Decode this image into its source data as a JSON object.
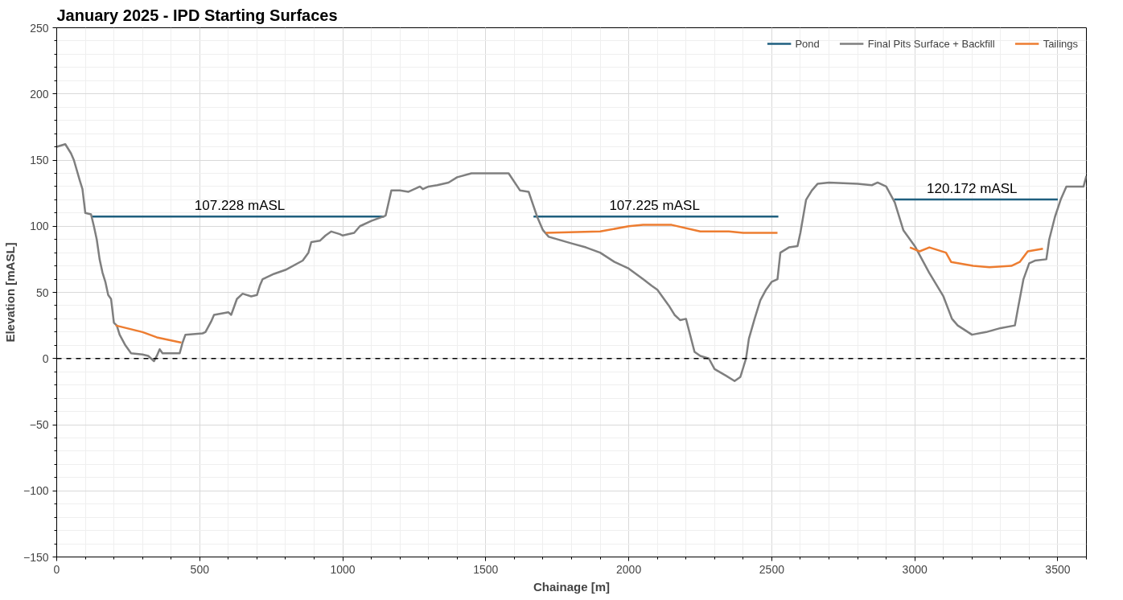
{
  "chart_data": {
    "type": "line",
    "title": "January 2025 - IPD Starting Surfaces",
    "xlabel": "Chainage [m]",
    "ylabel": "Elevation [mASL]",
    "xlim": [
      0,
      3600
    ],
    "xticks": [
      0,
      500,
      1000,
      1500,
      2000,
      2500,
      3000,
      3500
    ],
    "ylim": [
      -150,
      250
    ],
    "yticks": [
      -150,
      -100,
      -50,
      0,
      50,
      100,
      150,
      200,
      250
    ],
    "grid": true,
    "legend": "top right",
    "line_style": "solid",
    "marker": "none",
    "series": [
      {
        "name": "Pond",
        "color": "#1f5f7f",
        "x": [
          123,
          1145,
          1146,
          1667,
          2523,
          2524,
          2928,
          3500
        ],
        "values": [
          107.228,
          107.228,
          null,
          107.225,
          107.225,
          null,
          120.172,
          120.172
        ]
      },
      {
        "name": "Final Pits Surface + Backfill",
        "color": "#7f7f7f",
        "x": [
          0,
          30,
          50,
          60,
          80,
          90,
          100,
          120,
          130,
          140,
          150,
          160,
          170,
          180,
          190,
          200,
          210,
          220,
          240,
          260,
          300,
          320,
          340,
          350,
          360,
          370,
          430,
          440,
          450,
          510,
          520,
          540,
          550,
          600,
          610,
          630,
          650,
          680,
          700,
          710,
          720,
          760,
          800,
          860,
          880,
          890,
          920,
          940,
          960,
          990,
          1000,
          1040,
          1060,
          1100,
          1150,
          1170,
          1200,
          1230,
          1270,
          1280,
          1300,
          1330,
          1370,
          1400,
          1450,
          1500,
          1580,
          1620,
          1650,
          1680,
          1700,
          1720,
          1800,
          1850,
          1900,
          1950,
          2000,
          2050,
          2080,
          2100,
          2140,
          2160,
          2180,
          2200,
          2230,
          2250,
          2280,
          2300,
          2340,
          2370,
          2390,
          2410,
          2420,
          2440,
          2460,
          2480,
          2500,
          2520,
          2530,
          2560,
          2590,
          2600,
          2620,
          2640,
          2660,
          2700,
          2800,
          2850,
          2870,
          2900,
          2930,
          2960,
          3000,
          3050,
          3100,
          3130,
          3150,
          3200,
          3250,
          3300,
          3350,
          3360,
          3380,
          3400,
          3420,
          3460,
          3470,
          3490,
          3510,
          3530,
          3590,
          3600
        ],
        "values": [
          160,
          162,
          155,
          150,
          135,
          128,
          110,
          109,
          100,
          90,
          75,
          65,
          58,
          48,
          45,
          27,
          25,
          18,
          10,
          4,
          3,
          2,
          -2,
          2,
          7,
          4,
          4,
          12,
          18,
          19,
          20,
          28,
          33,
          35,
          33,
          45,
          49,
          47,
          48,
          55,
          60,
          64,
          67,
          74,
          80,
          88,
          89,
          93,
          96,
          94,
          93,
          95,
          100,
          104,
          108,
          127,
          127,
          126,
          130,
          128,
          130,
          131,
          133,
          137,
          140,
          140,
          140,
          127,
          126,
          107,
          97,
          92,
          87,
          84,
          80,
          73,
          68,
          60,
          55,
          52,
          40,
          33,
          29,
          30,
          5,
          2,
          0,
          -8,
          -13,
          -17,
          -14,
          0,
          15,
          30,
          44,
          52,
          58,
          60,
          80,
          84,
          85,
          95,
          120,
          127,
          132,
          133,
          132,
          131,
          133,
          130,
          118,
          97,
          85,
          65,
          47,
          30,
          25,
          18,
          20,
          23,
          25,
          37,
          60,
          72,
          74,
          75,
          90,
          107,
          120,
          130,
          130,
          138
        ]
      },
      {
        "name": "Tailings",
        "color": "#ed7d31",
        "x": [
          206,
          300,
          350,
          436,
          437,
          1710,
          1900,
          2000,
          2050,
          2150,
          2250,
          2350,
          2400,
          2520,
          2521,
          2983,
          3017,
          3051,
          3109,
          3127,
          3204,
          3261,
          3338,
          3367,
          3395,
          3448
        ],
        "values": [
          25,
          20,
          16,
          12,
          null,
          95,
          96,
          100,
          101,
          101,
          96,
          96,
          95,
          95,
          null,
          84,
          81,
          84,
          80,
          73,
          70,
          69,
          70,
          73,
          81,
          83
        ]
      }
    ],
    "ref_lines": [
      {
        "axis": "y",
        "value": 0,
        "color": "#000000",
        "line_style": "dashed"
      }
    ],
    "annotations": [
      {
        "text": "107.228 mASL",
        "x": 640,
        "y": 107.228
      },
      {
        "text": "107.225 mASL",
        "x": 2090,
        "y": 107.225
      },
      {
        "text": "120.172 mASL",
        "x": 3200,
        "y": 120.172
      }
    ]
  }
}
